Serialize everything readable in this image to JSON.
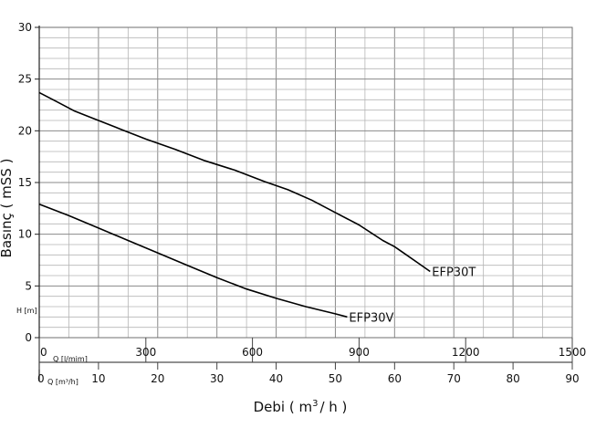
{
  "chart_data": {
    "type": "line",
    "ylabel": "Basınç ( mSS )",
    "ylim": [
      0,
      30
    ],
    "yticks": [
      0,
      5,
      10,
      15,
      20,
      25,
      30
    ],
    "x_lpm": {
      "label": "Q [l/mim]",
      "range": [
        0,
        1500
      ],
      "ticks": [
        0,
        300,
        600,
        900,
        1200,
        1500
      ]
    },
    "x_m3h": {
      "label": "Q [m³/h]",
      "range": [
        0,
        90
      ],
      "ticks": [
        0,
        10,
        20,
        30,
        40,
        50,
        60,
        70,
        80,
        90
      ]
    },
    "xlabel": {
      "prefix": "Debi ( m",
      "sup": "3",
      "suffix": "/ h )"
    },
    "h_label": "H [m]",
    "grid": true,
    "series": [
      {
        "name": "EFP30T",
        "color": "#000000",
        "points": [
          [
            0,
            23.7
          ],
          [
            3,
            22.8
          ],
          [
            6,
            21.9
          ],
          [
            10,
            21.0
          ],
          [
            14,
            20.1
          ],
          [
            18,
            19.2
          ],
          [
            23,
            18.2
          ],
          [
            28,
            17.1
          ],
          [
            33,
            16.2
          ],
          [
            38,
            15.1
          ],
          [
            42,
            14.3
          ],
          [
            46,
            13.3
          ],
          [
            50,
            12.1
          ],
          [
            54,
            10.9
          ],
          [
            58,
            9.4
          ],
          [
            60,
            8.8
          ],
          [
            62,
            8.0
          ],
          [
            64,
            7.2
          ],
          [
            66,
            6.4
          ]
        ]
      },
      {
        "name": "EFP30V",
        "color": "#000000",
        "points": [
          [
            0,
            12.9
          ],
          [
            5,
            11.8
          ],
          [
            10,
            10.6
          ],
          [
            15,
            9.4
          ],
          [
            20,
            8.2
          ],
          [
            25,
            7.0
          ],
          [
            30,
            5.8
          ],
          [
            35,
            4.7
          ],
          [
            40,
            3.8
          ],
          [
            45,
            3.0
          ],
          [
            50,
            2.3
          ],
          [
            52,
            2.0
          ]
        ]
      }
    ]
  }
}
